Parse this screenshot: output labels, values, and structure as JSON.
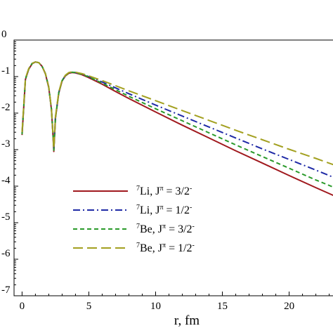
{
  "chart_data": {
    "type": "line",
    "xlabel": "r, fm",
    "ylabel": "",
    "xlim": [
      -0.6,
      23.6
    ],
    "ylim_log10": [
      -7,
      0
    ],
    "y_scale": "log",
    "x_ticks": [
      0,
      5,
      10,
      15,
      20
    ],
    "y_tick_exponents": [
      "0",
      "-1",
      "-2",
      "-3",
      "-4",
      "-5",
      "-6",
      "-7"
    ],
    "y_tick_base_visible": "",
    "grid": false,
    "legend_position": "lower-left",
    "series": [
      {
        "name_parts": {
          "sup": "7",
          "nucleus": "Li",
          "sep": ", J",
          "pi": "π",
          "value": " = 3/2",
          "parity": "-"
        },
        "color": "#a0191e",
        "dash": "solid",
        "x": [
          0,
          0.25,
          0.5,
          0.75,
          1.0,
          1.25,
          1.5,
          1.75,
          2.0,
          2.2,
          2.3,
          2.38,
          2.5,
          2.75,
          3.0,
          3.25,
          3.5,
          3.75,
          4.0,
          4.5,
          5,
          6,
          7,
          8,
          10,
          12,
          14,
          16,
          18,
          20,
          22,
          23.6
        ],
        "log10y": [
          -2.6,
          -1.08,
          -0.8,
          -0.65,
          -0.6,
          -0.62,
          -0.72,
          -0.93,
          -1.3,
          -1.9,
          -2.5,
          -3.05,
          -2.15,
          -1.45,
          -1.12,
          -0.98,
          -0.91,
          -0.89,
          -0.9,
          -0.95,
          -1.03,
          -1.21,
          -1.41,
          -1.6,
          -1.97,
          -2.33,
          -2.68,
          -3.03,
          -3.37,
          -3.71,
          -4.04,
          -4.3
        ]
      },
      {
        "name_parts": {
          "sup": "7",
          "nucleus": "Li",
          "sep": ", J",
          "pi": "π",
          "value": " = 1/2",
          "parity": "-"
        },
        "color": "#1f2aa6",
        "dash": "10,4,2,4",
        "x": [
          0,
          0.25,
          0.5,
          0.75,
          1.0,
          1.25,
          1.5,
          1.75,
          2.0,
          2.2,
          2.3,
          2.38,
          2.5,
          2.75,
          3.0,
          3.25,
          3.5,
          3.75,
          4.0,
          4.5,
          5,
          6,
          7,
          8,
          10,
          12,
          14,
          16,
          18,
          20,
          22,
          23.6
        ],
        "log10y": [
          -2.55,
          -1.06,
          -0.79,
          -0.64,
          -0.6,
          -0.62,
          -0.72,
          -0.92,
          -1.29,
          -1.88,
          -2.48,
          -3.0,
          -2.12,
          -1.43,
          -1.11,
          -0.97,
          -0.9,
          -0.88,
          -0.89,
          -0.93,
          -1.0,
          -1.15,
          -1.31,
          -1.47,
          -1.78,
          -2.08,
          -2.38,
          -2.68,
          -2.98,
          -3.27,
          -3.56,
          -3.8
        ]
      },
      {
        "name_parts": {
          "sup": "7",
          "nucleus": "Be",
          "sep": ", J",
          "pi": "π",
          "value": " = 3/2",
          "parity": "-"
        },
        "color": "#2a9a2a",
        "dash": "6,4",
        "x": [
          0,
          0.25,
          0.5,
          0.75,
          1.0,
          1.25,
          1.5,
          1.75,
          2.0,
          2.2,
          2.3,
          2.38,
          2.5,
          2.75,
          3.0,
          3.25,
          3.5,
          3.75,
          4.0,
          4.5,
          5,
          6,
          7,
          8,
          10,
          12,
          14,
          16,
          18,
          20,
          22,
          23.6
        ],
        "log10y": [
          -2.58,
          -1.07,
          -0.79,
          -0.64,
          -0.6,
          -0.62,
          -0.72,
          -0.92,
          -1.29,
          -1.89,
          -2.49,
          -3.02,
          -2.13,
          -1.44,
          -1.11,
          -0.97,
          -0.9,
          -0.88,
          -0.89,
          -0.94,
          -1.01,
          -1.18,
          -1.36,
          -1.54,
          -1.88,
          -2.21,
          -2.54,
          -2.87,
          -3.19,
          -3.51,
          -3.83,
          -4.07
        ]
      },
      {
        "name_parts": {
          "sup": "7",
          "nucleus": "Be",
          "sep": ", J",
          "pi": "π",
          "value": " = 1/2",
          "parity": "-"
        },
        "color": "#a3a020",
        "dash": "14,6",
        "x": [
          0,
          0.25,
          0.5,
          0.75,
          1.0,
          1.25,
          1.5,
          1.75,
          2.0,
          2.2,
          2.3,
          2.38,
          2.5,
          2.75,
          3.0,
          3.25,
          3.5,
          3.75,
          4.0,
          4.5,
          5,
          6,
          7,
          8,
          10,
          12,
          14,
          16,
          18,
          20,
          22,
          23.6
        ],
        "log10y": [
          -2.52,
          -1.05,
          -0.78,
          -0.64,
          -0.6,
          -0.62,
          -0.72,
          -0.92,
          -1.28,
          -1.87,
          -2.47,
          -2.98,
          -2.1,
          -1.42,
          -1.1,
          -0.96,
          -0.89,
          -0.87,
          -0.88,
          -0.92,
          -0.98,
          -1.11,
          -1.25,
          -1.39,
          -1.66,
          -1.93,
          -2.2,
          -2.47,
          -2.73,
          -2.99,
          -3.24,
          -3.45
        ]
      }
    ]
  }
}
